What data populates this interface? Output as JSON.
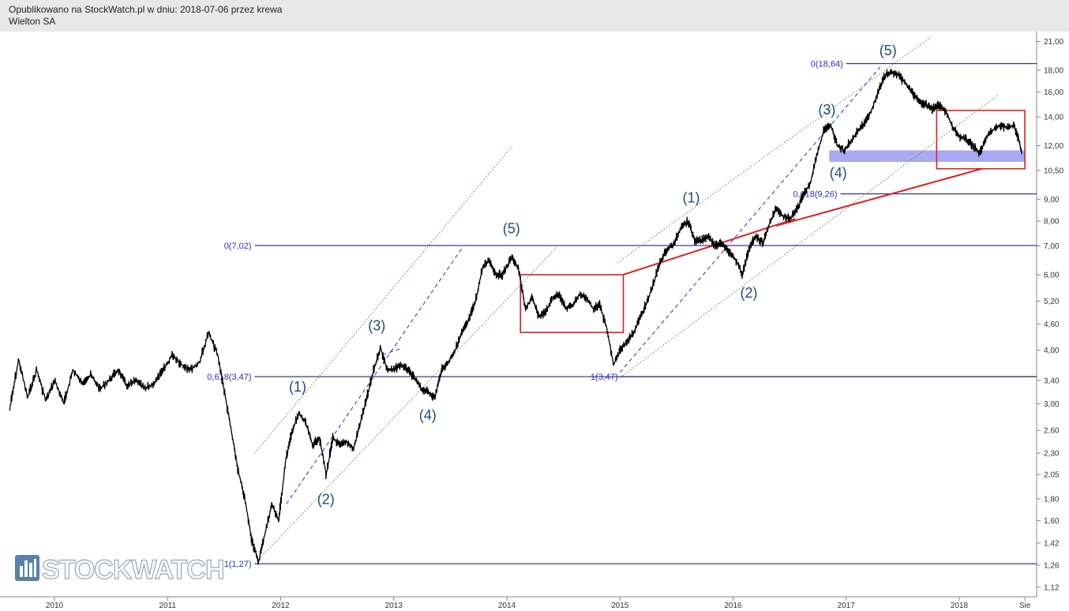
{
  "header": {
    "published": "Opublikowano na StockWatch.pl w dniu: 2018-07-06 przez krewa",
    "instrument": "Wielton SA"
  },
  "logo": {
    "text": "STOCKWATCH",
    "icon": "bar-chart-icon"
  },
  "colors": {
    "price": "#000000",
    "fib_line": "#0a0a78",
    "fib_text": "#2b2bd6",
    "wave_label": "#1f4e79",
    "channel_dotted": "#4d8a3a",
    "dashed": "#2b2bd6",
    "box": "#e02020",
    "zone": "#8c8cf0"
  },
  "chart_data": {
    "type": "line",
    "subtype": "candlestick",
    "y_scale": "log",
    "ylim": [
      1.1,
      21.5
    ],
    "y_ticks": [
      "21,00",
      "18,00",
      "16,00",
      "14,00",
      "12,00",
      "10,50",
      "9,00",
      "8,00",
      "7,00",
      "6,00",
      "5,20",
      "4,60",
      "4,00",
      "3,40",
      "3,00",
      "2,60",
      "2,30",
      "2,05",
      "1,80",
      "1,60",
      "1,42",
      "1,26",
      "1,12"
    ],
    "x_ticks": [
      {
        "label": "2010",
        "year": 2010.0
      },
      {
        "label": "2011",
        "year": 2011.0
      },
      {
        "label": "2012",
        "year": 2012.0
      },
      {
        "label": "2013",
        "year": 2013.0
      },
      {
        "label": "2014",
        "year": 2014.0
      },
      {
        "label": "2015",
        "year": 2015.0
      },
      {
        "label": "2016",
        "year": 2016.0
      },
      {
        "label": "2017",
        "year": 2017.0
      },
      {
        "label": "2018",
        "year": 2018.0
      },
      {
        "label": "Sie",
        "year": 2018.58
      }
    ],
    "price_series": {
      "name": "",
      "points": [
        [
          2009.6,
          2.9
        ],
        [
          2009.68,
          3.8
        ],
        [
          2009.76,
          3.1
        ],
        [
          2009.84,
          3.6
        ],
        [
          2009.92,
          3.05
        ],
        [
          2010.0,
          3.4
        ],
        [
          2010.08,
          3.0
        ],
        [
          2010.16,
          3.6
        ],
        [
          2010.24,
          3.35
        ],
        [
          2010.32,
          3.5
        ],
        [
          2010.4,
          3.25
        ],
        [
          2010.48,
          3.4
        ],
        [
          2010.56,
          3.6
        ],
        [
          2010.64,
          3.3
        ],
        [
          2010.72,
          3.4
        ],
        [
          2010.8,
          3.25
        ],
        [
          2010.88,
          3.35
        ],
        [
          2010.96,
          3.6
        ],
        [
          2011.04,
          3.9
        ],
        [
          2011.12,
          3.7
        ],
        [
          2011.2,
          3.6
        ],
        [
          2011.28,
          3.75
        ],
        [
          2011.36,
          4.4
        ],
        [
          2011.44,
          3.9
        ],
        [
          2011.5,
          3.2
        ],
        [
          2011.56,
          2.6
        ],
        [
          2011.62,
          2.1
        ],
        [
          2011.68,
          1.8
        ],
        [
          2011.74,
          1.45
        ],
        [
          2011.8,
          1.28
        ],
        [
          2011.86,
          1.5
        ],
        [
          2011.92,
          1.75
        ],
        [
          2011.98,
          1.6
        ],
        [
          2012.04,
          2.2
        ],
        [
          2012.1,
          2.6
        ],
        [
          2012.16,
          2.85
        ],
        [
          2012.22,
          2.7
        ],
        [
          2012.28,
          2.4
        ],
        [
          2012.34,
          2.5
        ],
        [
          2012.4,
          2.05
        ],
        [
          2012.46,
          2.5
        ],
        [
          2012.52,
          2.4
        ],
        [
          2012.58,
          2.45
        ],
        [
          2012.64,
          2.35
        ],
        [
          2012.7,
          2.7
        ],
        [
          2012.76,
          3.1
        ],
        [
          2012.82,
          3.6
        ],
        [
          2012.88,
          4.05
        ],
        [
          2012.94,
          3.6
        ],
        [
          2013.0,
          3.6
        ],
        [
          2013.06,
          3.7
        ],
        [
          2013.12,
          3.6
        ],
        [
          2013.18,
          3.45
        ],
        [
          2013.24,
          3.25
        ],
        [
          2013.3,
          3.2
        ],
        [
          2013.36,
          3.1
        ],
        [
          2013.42,
          3.6
        ],
        [
          2013.48,
          3.75
        ],
        [
          2013.54,
          4.0
        ],
        [
          2013.6,
          4.4
        ],
        [
          2013.66,
          4.7
        ],
        [
          2013.72,
          5.2
        ],
        [
          2013.78,
          6.2
        ],
        [
          2013.84,
          6.5
        ],
        [
          2013.9,
          6.0
        ],
        [
          2013.96,
          6.0
        ],
        [
          2014.04,
          6.6
        ],
        [
          2014.1,
          6.2
        ],
        [
          2014.16,
          5.0
        ],
        [
          2014.22,
          5.3
        ],
        [
          2014.28,
          4.8
        ],
        [
          2014.34,
          4.9
        ],
        [
          2014.4,
          5.3
        ],
        [
          2014.46,
          5.4
        ],
        [
          2014.52,
          5.0
        ],
        [
          2014.58,
          5.1
        ],
        [
          2014.64,
          5.4
        ],
        [
          2014.7,
          5.3
        ],
        [
          2014.76,
          5.0
        ],
        [
          2014.82,
          5.1
        ],
        [
          2014.88,
          4.5
        ],
        [
          2014.94,
          3.7
        ],
        [
          2015.0,
          4.0
        ],
        [
          2015.06,
          4.2
        ],
        [
          2015.12,
          4.4
        ],
        [
          2015.18,
          4.8
        ],
        [
          2015.24,
          5.2
        ],
        [
          2015.3,
          5.8
        ],
        [
          2015.36,
          6.5
        ],
        [
          2015.42,
          6.9
        ],
        [
          2015.48,
          7.1
        ],
        [
          2015.54,
          7.8
        ],
        [
          2015.6,
          8.0
        ],
        [
          2015.66,
          7.2
        ],
        [
          2015.72,
          7.2
        ],
        [
          2015.78,
          7.4
        ],
        [
          2015.84,
          7.0
        ],
        [
          2015.9,
          7.1
        ],
        [
          2015.96,
          6.8
        ],
        [
          2016.02,
          6.5
        ],
        [
          2016.08,
          6.0
        ],
        [
          2016.14,
          6.9
        ],
        [
          2016.2,
          7.4
        ],
        [
          2016.26,
          7.1
        ],
        [
          2016.32,
          7.9
        ],
        [
          2016.38,
          8.6
        ],
        [
          2016.44,
          8.2
        ],
        [
          2016.5,
          8.1
        ],
        [
          2016.56,
          8.5
        ],
        [
          2016.62,
          9.2
        ],
        [
          2016.68,
          9.8
        ],
        [
          2016.74,
          11.5
        ],
        [
          2016.8,
          13.0
        ],
        [
          2016.86,
          13.4
        ],
        [
          2016.92,
          12.0
        ],
        [
          2016.98,
          11.7
        ],
        [
          2017.04,
          12.3
        ],
        [
          2017.1,
          13.0
        ],
        [
          2017.16,
          13.5
        ],
        [
          2017.22,
          14.5
        ],
        [
          2017.28,
          16.0
        ],
        [
          2017.34,
          17.5
        ],
        [
          2017.4,
          17.8
        ],
        [
          2017.46,
          17.5
        ],
        [
          2017.52,
          16.8
        ],
        [
          2017.58,
          16.0
        ],
        [
          2017.64,
          15.2
        ],
        [
          2017.7,
          15.0
        ],
        [
          2017.76,
          14.6
        ],
        [
          2017.82,
          14.9
        ],
        [
          2017.88,
          14.4
        ],
        [
          2017.94,
          13.2
        ],
        [
          2018.0,
          12.6
        ],
        [
          2018.06,
          12.4
        ],
        [
          2018.12,
          12.0
        ],
        [
          2018.18,
          11.5
        ],
        [
          2018.24,
          12.6
        ],
        [
          2018.3,
          13.1
        ],
        [
          2018.36,
          13.4
        ],
        [
          2018.42,
          13.2
        ],
        [
          2018.48,
          13.4
        ],
        [
          2018.52,
          12.5
        ],
        [
          2018.55,
          11.5
        ]
      ]
    },
    "fibonacci_levels": [
      {
        "label": "0(18,64)",
        "value": 18.64,
        "x_from": 2017.0
      },
      {
        "label": "0,618(9,26)",
        "value": 9.26,
        "x_from": 2016.95
      },
      {
        "label": "0(7,02)",
        "value": 7.02,
        "x_from": 2011.77
      },
      {
        "label": "0,618(3,47)",
        "value": 3.47,
        "x_from": 2011.77
      },
      {
        "label": "1(3,47)",
        "value": 3.47,
        "x_from": 2015.01
      },
      {
        "label": "1(1,27)",
        "value": 1.27,
        "x_from": 2011.77
      }
    ],
    "wave_labels": [
      {
        "text": "(1)",
        "x": 2012.15,
        "y": 3.2
      },
      {
        "text": "(2)",
        "x": 2012.4,
        "y": 1.75
      },
      {
        "text": "(3)",
        "x": 2012.85,
        "y": 4.45
      },
      {
        "text": "(4)",
        "x": 2013.3,
        "y": 2.75
      },
      {
        "text": "(5)",
        "x": 2014.04,
        "y": 7.5
      },
      {
        "text": "(1)",
        "x": 2015.63,
        "y": 8.85
      },
      {
        "text": "(2)",
        "x": 2016.14,
        "y": 5.3
      },
      {
        "text": "(3)",
        "x": 2016.83,
        "y": 14.2
      },
      {
        "text": "(4)",
        "x": 2016.93,
        "y": 10.1
      },
      {
        "text": "(5)",
        "x": 2017.37,
        "y": 19.5
      }
    ],
    "trendlines": [
      {
        "style": "dotted",
        "points": [
          [
            2011.77,
            2.3
          ],
          [
            2014.05,
            12.0
          ]
        ]
      },
      {
        "style": "dotted",
        "points": [
          [
            2011.77,
            1.27
          ],
          [
            2014.45,
            7.0
          ]
        ]
      },
      {
        "style": "dashed",
        "points": [
          [
            2012.05,
            1.75
          ],
          [
            2013.6,
            6.9
          ]
        ]
      },
      {
        "style": "dashed",
        "points": [
          [
            2012.9,
            3.9
          ],
          [
            2013.08,
            4.05
          ]
        ]
      },
      {
        "style": "dotted",
        "points": [
          [
            2014.98,
            6.4
          ],
          [
            2017.75,
            21.5
          ]
        ]
      },
      {
        "style": "dotted",
        "points": [
          [
            2015.0,
            3.45
          ],
          [
            2018.35,
            15.8
          ]
        ]
      },
      {
        "style": "dashed",
        "points": [
          [
            2015.0,
            3.55
          ],
          [
            2017.3,
            18.3
          ]
        ]
      },
      {
        "style": "solid_red",
        "points": [
          [
            2015.03,
            6.0
          ],
          [
            2016.55,
            8.1
          ]
        ]
      },
      {
        "style": "solid_red",
        "points": [
          [
            2016.38,
            7.8
          ],
          [
            2018.2,
            10.6
          ]
        ]
      }
    ],
    "boxes": [
      {
        "x0": 2014.12,
        "x1": 2015.03,
        "y0": 4.4,
        "y1": 6.0
      },
      {
        "x0": 2017.8,
        "x1": 2018.58,
        "y0": 10.6,
        "y1": 14.5
      }
    ],
    "support_zone": {
      "x0": 2016.85,
      "x1": 2018.58,
      "y0": 11.0,
      "y1": 11.7
    }
  }
}
